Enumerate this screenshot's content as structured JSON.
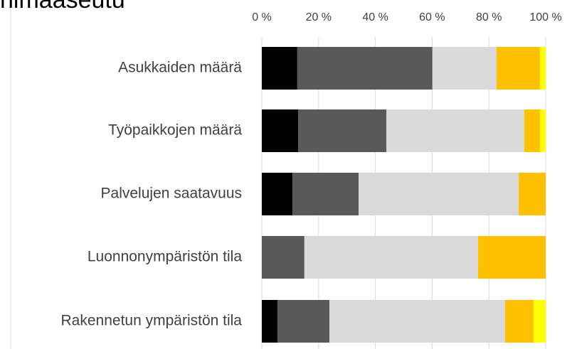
{
  "chart_data": {
    "type": "stacked_barh",
    "title": "nimaaseutu",
    "categories": [
      "Asukkaiden määrä",
      "Työpaikkojen määrä",
      "Palvelujen saatavuus",
      "Luonnonympäristön tila",
      "Rakennetun ympäristön tila"
    ],
    "series": [
      {
        "color": "#000000",
        "values": [
          12.5,
          12.8,
          10.8,
          0,
          5.5
        ]
      },
      {
        "color": "#595959",
        "values": [
          47.6,
          31.1,
          23.3,
          15.0,
          18.3
        ]
      },
      {
        "color": "#d9d9d9",
        "values": [
          22.6,
          48.6,
          56.4,
          61.2,
          61.9
        ]
      },
      {
        "color": "#ffc000",
        "values": [
          15.3,
          5.5,
          9.5,
          23.8,
          10.0
        ]
      },
      {
        "color": "#ffff00",
        "values": [
          2.0,
          2.0,
          0,
          0,
          4.3
        ]
      }
    ],
    "xlim": [
      0,
      100
    ],
    "xticks": [
      {
        "value": 0,
        "label": "0 %"
      },
      {
        "value": 20,
        "label": "20 %"
      },
      {
        "value": 40,
        "label": "40 %"
      },
      {
        "value": 60,
        "label": "60 %"
      },
      {
        "value": 80,
        "label": "80 %"
      },
      {
        "value": 100,
        "label": "100 %"
      }
    ],
    "grid": true
  }
}
